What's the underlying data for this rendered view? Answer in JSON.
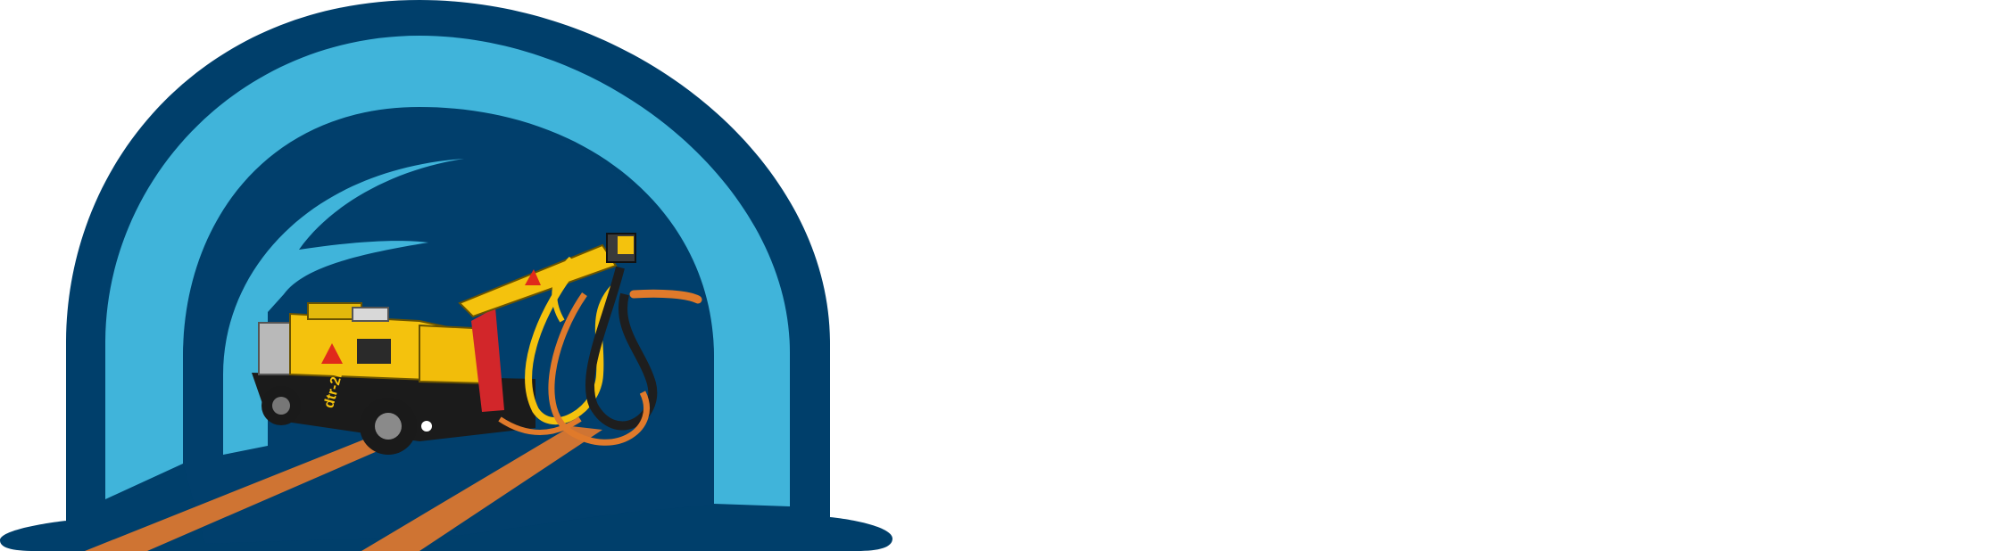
{
  "logo": {
    "name": "tunnel-shotcrete-logo",
    "machine_marking": "dtr-2II",
    "colors": {
      "arch_outer": "#003f6b",
      "arch_light": "#40b4da",
      "arch_inner": "#013f6c",
      "rails": "#cf7433",
      "machine_body": "#f4c20d",
      "machine_base": "#1b1b1b",
      "boom_red": "#d2262a",
      "hose_orange": "#e07a2b",
      "warning_triangle": "#e02a1b",
      "background": "#ffffff"
    }
  }
}
